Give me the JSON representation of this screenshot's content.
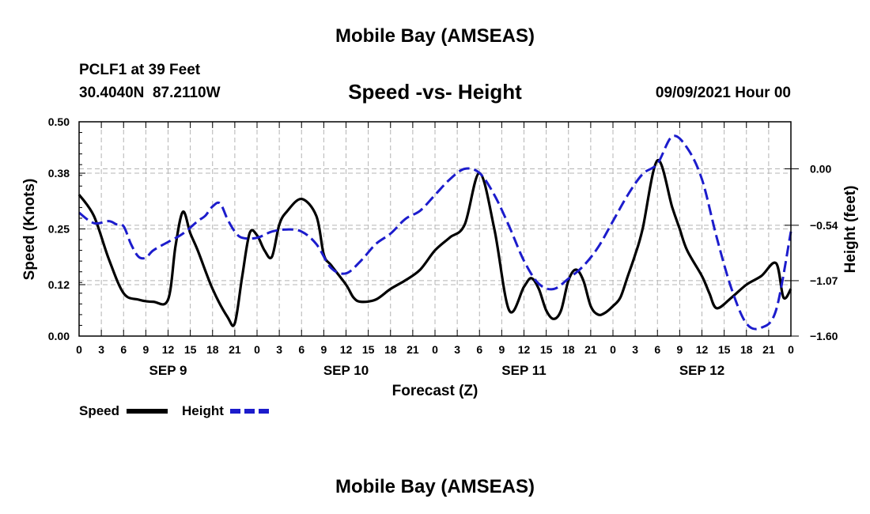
{
  "header": {
    "title": "Mobile Bay (AMSEAS)",
    "station": "PCLF1 at 39 Feet",
    "coords": "30.4040N  87.2110W",
    "subtitle": "Speed -vs- Height",
    "date": "09/09/2021 Hour 00"
  },
  "footer": {
    "title": "Mobile Bay (AMSEAS)"
  },
  "legend": {
    "speed_label": "Speed",
    "height_label": "Height"
  },
  "colors": {
    "speed": "#000000",
    "height": "#1c1ccc",
    "grid": "#b4b4b4"
  },
  "chart_data": {
    "type": "line",
    "xlabel": "Forecast (Z)",
    "ylabel_left": "Speed (Knots)",
    "ylabel_right": "Height (feet)",
    "x_range_hours": [
      0,
      96
    ],
    "x_tick_labels": [
      "0",
      "3",
      "6",
      "9",
      "12",
      "15",
      "18",
      "21",
      "0",
      "3",
      "6",
      "9",
      "12",
      "15",
      "18",
      "21",
      "0",
      "3",
      "6",
      "9",
      "12",
      "15",
      "18",
      "21",
      "0",
      "3",
      "6",
      "9",
      "12",
      "15",
      "18",
      "21",
      "0"
    ],
    "day_labels": [
      "SEP 9",
      "SEP 10",
      "SEP 11",
      "SEP 12"
    ],
    "left_axis": {
      "ylim": [
        0,
        0.5
      ],
      "ticks": [
        "0.00",
        "0.12",
        "0.25",
        "0.38",
        "0.50"
      ]
    },
    "right_axis": {
      "ylim": [
        -1.6,
        0.45
      ],
      "ticks": [
        "0.00",
        "-0.54",
        "-1.07",
        "-1.60"
      ]
    },
    "grid": true,
    "legend_position": "bottom-left",
    "series": [
      {
        "name": "Speed",
        "axis": "left",
        "x": [
          0,
          2,
          4,
          6,
          8,
          10,
          12,
          13,
          14,
          15,
          16,
          18,
          20,
          21,
          22,
          23,
          24,
          25,
          26,
          27,
          28,
          30,
          32,
          33,
          34,
          36,
          37,
          38,
          40,
          42,
          44,
          46,
          48,
          50,
          52,
          54,
          56,
          58,
          60,
          61,
          62,
          63,
          64,
          65,
          66,
          67,
          68,
          69,
          70,
          71,
          72,
          73,
          74,
          75,
          76,
          78,
          80,
          81,
          82,
          84,
          85,
          86,
          88,
          90,
          92,
          94,
          95,
          96
        ],
        "y": [
          0.33,
          0.28,
          0.18,
          0.1,
          0.085,
          0.08,
          0.085,
          0.21,
          0.29,
          0.24,
          0.2,
          0.11,
          0.045,
          0.03,
          0.14,
          0.24,
          0.235,
          0.2,
          0.185,
          0.26,
          0.29,
          0.32,
          0.28,
          0.19,
          0.165,
          0.12,
          0.09,
          0.08,
          0.085,
          0.11,
          0.13,
          0.155,
          0.2,
          0.23,
          0.26,
          0.38,
          0.25,
          0.06,
          0.115,
          0.135,
          0.11,
          0.06,
          0.04,
          0.06,
          0.13,
          0.155,
          0.13,
          0.07,
          0.05,
          0.055,
          0.07,
          0.09,
          0.14,
          0.19,
          0.25,
          0.41,
          0.3,
          0.25,
          0.2,
          0.14,
          0.1,
          0.065,
          0.09,
          0.12,
          0.14,
          0.17,
          0.09,
          0.11
        ]
      },
      {
        "name": "Height",
        "axis": "right",
        "x": [
          0,
          2,
          4,
          5,
          6,
          7,
          8,
          9,
          10,
          12,
          14,
          16,
          17,
          18,
          19,
          20,
          21,
          22,
          24,
          26,
          28,
          30,
          32,
          34,
          36,
          38,
          40,
          42,
          44,
          46,
          48,
          50,
          52,
          54,
          56,
          58,
          60,
          62,
          64,
          66,
          68,
          70,
          72,
          74,
          76,
          78,
          80,
          82,
          84,
          86,
          88,
          90,
          92,
          94,
          96
        ],
        "y": [
          -0.42,
          -0.52,
          -0.5,
          -0.53,
          -0.55,
          -0.72,
          -0.84,
          -0.85,
          -0.78,
          -0.7,
          -0.62,
          -0.5,
          -0.45,
          -0.36,
          -0.33,
          -0.48,
          -0.6,
          -0.66,
          -0.66,
          -0.6,
          -0.58,
          -0.6,
          -0.72,
          -0.95,
          -1.0,
          -0.88,
          -0.72,
          -0.62,
          -0.48,
          -0.4,
          -0.25,
          -0.1,
          0.0,
          -0.04,
          -0.25,
          -0.55,
          -0.88,
          -1.1,
          -1.15,
          -1.05,
          -0.93,
          -0.75,
          -0.5,
          -0.25,
          -0.05,
          0.05,
          0.31,
          0.2,
          -0.1,
          -0.66,
          -1.15,
          -1.48,
          -1.52,
          -1.35,
          -0.6
        ]
      }
    ]
  }
}
